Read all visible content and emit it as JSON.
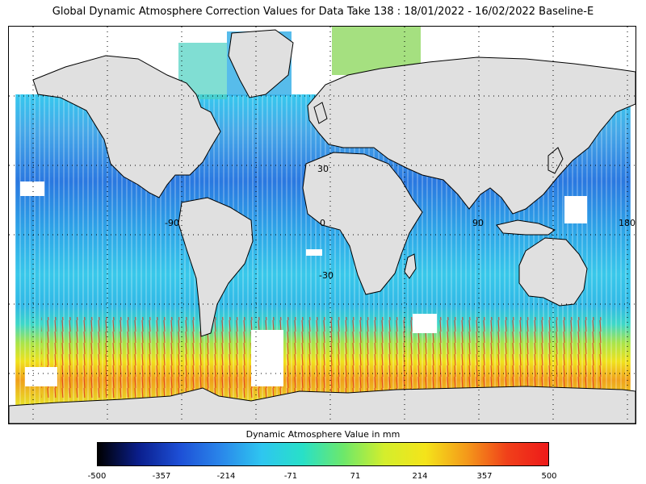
{
  "title": "Global Dynamic Atmosphere Correction Values for Data Take 138 : 18/01/2022 - 16/02/2022 Baseline-E",
  "map": {
    "projection": "equirectangular",
    "grid": "dotted",
    "lat_labels": [
      "30",
      "-30"
    ],
    "lon_labels": [
      "-90",
      "0",
      "90",
      "180"
    ],
    "land_color": "#e0e0e0",
    "coast_color": "#000000"
  },
  "colorbar": {
    "title": "Dynamic Atmosphere Value in mm",
    "min": -500,
    "max": 500,
    "ticks": [
      "-500",
      "-357",
      "-214",
      "-71",
      "71",
      "214",
      "357",
      "500"
    ],
    "stops": [
      "#000000",
      "#0a1e8c",
      "#1d4fd6",
      "#2a86ea",
      "#2ec6f0",
      "#28e0c8",
      "#6de86a",
      "#d4ee2c",
      "#f4e41a",
      "#f49a1a",
      "#f0401a",
      "#ee1a1a"
    ]
  }
}
